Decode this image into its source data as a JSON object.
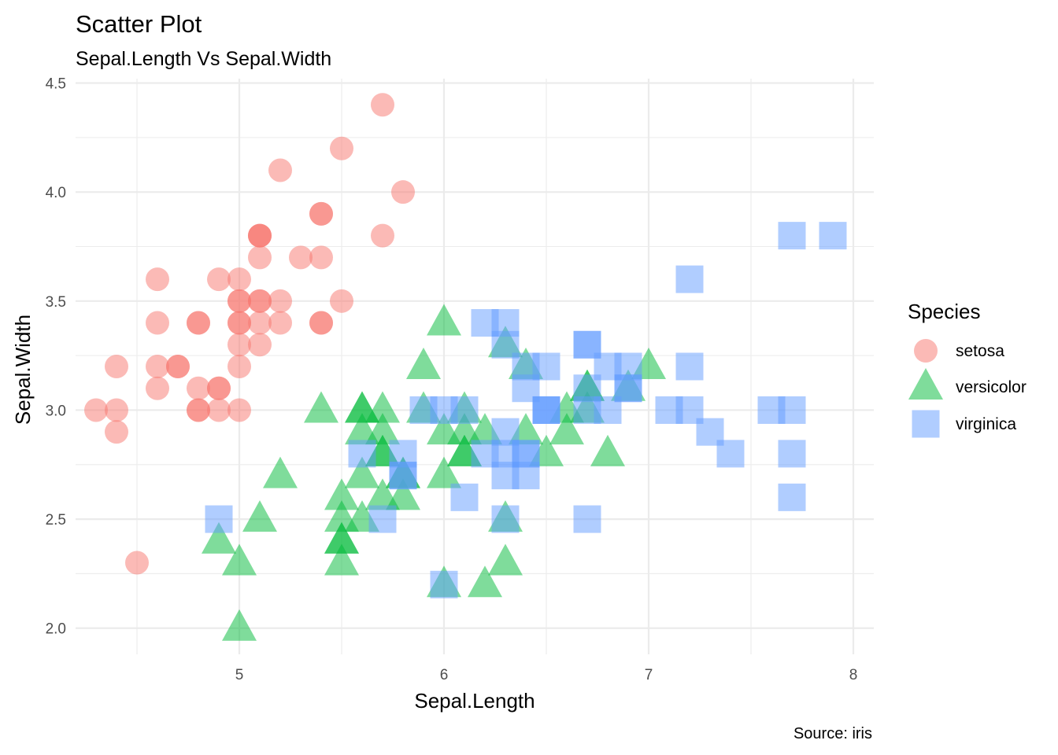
{
  "chart_data": {
    "type": "scatter",
    "title": "Scatter Plot",
    "subtitle": "Sepal.Length Vs Sepal.Width",
    "xlabel": "Sepal.Length",
    "ylabel": "Sepal.Width",
    "caption": "Source: iris",
    "xlim": [
      4.2,
      8.1
    ],
    "ylim": [
      1.88,
      4.52
    ],
    "xticks": [
      5,
      6,
      7,
      8
    ],
    "yticks": [
      2.0,
      2.5,
      3.0,
      3.5,
      4.0,
      4.5
    ],
    "ytick_labels": [
      "2.0",
      "2.5",
      "3.0",
      "3.5",
      "4.0",
      "4.5"
    ],
    "grid": true,
    "legend": {
      "title": "Species",
      "placement": "right"
    },
    "series": [
      {
        "name": "setosa",
        "shape": "circle",
        "color": "#F8766D",
        "points": [
          [
            5.1,
            3.5
          ],
          [
            4.9,
            3.0
          ],
          [
            4.7,
            3.2
          ],
          [
            4.6,
            3.1
          ],
          [
            5.0,
            3.6
          ],
          [
            5.4,
            3.9
          ],
          [
            4.6,
            3.4
          ],
          [
            5.0,
            3.4
          ],
          [
            4.4,
            2.9
          ],
          [
            4.9,
            3.1
          ],
          [
            5.4,
            3.7
          ],
          [
            4.8,
            3.4
          ],
          [
            4.8,
            3.0
          ],
          [
            4.3,
            3.0
          ],
          [
            5.8,
            4.0
          ],
          [
            5.7,
            4.4
          ],
          [
            5.4,
            3.9
          ],
          [
            5.1,
            3.5
          ],
          [
            5.7,
            3.8
          ],
          [
            5.1,
            3.8
          ],
          [
            5.4,
            3.4
          ],
          [
            5.1,
            3.7
          ],
          [
            4.6,
            3.6
          ],
          [
            5.1,
            3.3
          ],
          [
            4.8,
            3.4
          ],
          [
            5.0,
            3.0
          ],
          [
            5.0,
            3.4
          ],
          [
            5.2,
            3.5
          ],
          [
            5.2,
            3.4
          ],
          [
            4.7,
            3.2
          ],
          [
            4.8,
            3.1
          ],
          [
            5.4,
            3.4
          ],
          [
            5.2,
            4.1
          ],
          [
            5.5,
            4.2
          ],
          [
            4.9,
            3.1
          ],
          [
            5.0,
            3.2
          ],
          [
            5.5,
            3.5
          ],
          [
            4.9,
            3.6
          ],
          [
            4.4,
            3.0
          ],
          [
            5.1,
            3.4
          ],
          [
            5.0,
            3.5
          ],
          [
            4.5,
            2.3
          ],
          [
            4.4,
            3.2
          ],
          [
            5.0,
            3.5
          ],
          [
            5.1,
            3.8
          ],
          [
            4.8,
            3.0
          ],
          [
            5.1,
            3.8
          ],
          [
            4.6,
            3.2
          ],
          [
            5.3,
            3.7
          ],
          [
            5.0,
            3.3
          ]
        ]
      },
      {
        "name": "versicolor",
        "shape": "triangle",
        "color": "#00BA38",
        "points": [
          [
            7.0,
            3.2
          ],
          [
            6.4,
            3.2
          ],
          [
            6.9,
            3.1
          ],
          [
            5.5,
            2.3
          ],
          [
            6.5,
            2.8
          ],
          [
            5.7,
            2.8
          ],
          [
            6.3,
            3.3
          ],
          [
            4.9,
            2.4
          ],
          [
            6.6,
            2.9
          ],
          [
            5.2,
            2.7
          ],
          [
            5.0,
            2.0
          ],
          [
            5.9,
            3.0
          ],
          [
            6.0,
            2.2
          ],
          [
            6.1,
            2.9
          ],
          [
            5.6,
            2.9
          ],
          [
            6.7,
            3.1
          ],
          [
            5.6,
            3.0
          ],
          [
            5.8,
            2.7
          ],
          [
            6.2,
            2.2
          ],
          [
            5.6,
            2.5
          ],
          [
            5.9,
            3.2
          ],
          [
            6.1,
            2.8
          ],
          [
            6.3,
            2.5
          ],
          [
            6.1,
            2.8
          ],
          [
            6.4,
            2.9
          ],
          [
            6.6,
            3.0
          ],
          [
            6.8,
            2.8
          ],
          [
            6.7,
            3.0
          ],
          [
            6.0,
            2.9
          ],
          [
            5.7,
            2.6
          ],
          [
            5.5,
            2.4
          ],
          [
            5.5,
            2.4
          ],
          [
            5.8,
            2.7
          ],
          [
            6.0,
            2.7
          ],
          [
            5.4,
            3.0
          ],
          [
            6.0,
            3.4
          ],
          [
            6.7,
            3.1
          ],
          [
            6.3,
            2.3
          ],
          [
            5.6,
            3.0
          ],
          [
            5.5,
            2.5
          ],
          [
            5.5,
            2.6
          ],
          [
            6.1,
            3.0
          ],
          [
            5.8,
            2.6
          ],
          [
            5.0,
            2.3
          ],
          [
            5.6,
            2.7
          ],
          [
            5.7,
            3.0
          ],
          [
            5.7,
            2.9
          ],
          [
            6.2,
            2.9
          ],
          [
            5.1,
            2.5
          ],
          [
            5.7,
            2.8
          ]
        ]
      },
      {
        "name": "virginica",
        "shape": "square",
        "color": "#619CFF",
        "points": [
          [
            6.3,
            3.3
          ],
          [
            5.8,
            2.7
          ],
          [
            7.1,
            3.0
          ],
          [
            6.3,
            2.9
          ],
          [
            6.5,
            3.0
          ],
          [
            7.6,
            3.0
          ],
          [
            4.9,
            2.5
          ],
          [
            7.3,
            2.9
          ],
          [
            6.7,
            2.5
          ],
          [
            7.2,
            3.6
          ],
          [
            6.5,
            3.2
          ],
          [
            6.4,
            2.7
          ],
          [
            6.8,
            3.0
          ],
          [
            5.7,
            2.5
          ],
          [
            5.8,
            2.8
          ],
          [
            6.4,
            3.2
          ],
          [
            6.5,
            3.0
          ],
          [
            7.7,
            3.8
          ],
          [
            7.7,
            2.6
          ],
          [
            6.0,
            2.2
          ],
          [
            6.9,
            3.2
          ],
          [
            5.6,
            2.8
          ],
          [
            7.7,
            2.8
          ],
          [
            6.3,
            2.7
          ],
          [
            6.7,
            3.3
          ],
          [
            7.2,
            3.2
          ],
          [
            6.2,
            2.8
          ],
          [
            6.1,
            3.0
          ],
          [
            6.4,
            2.8
          ],
          [
            7.2,
            3.0
          ],
          [
            7.4,
            2.8
          ],
          [
            7.9,
            3.8
          ],
          [
            6.4,
            2.8
          ],
          [
            6.3,
            2.8
          ],
          [
            6.1,
            2.6
          ],
          [
            7.7,
            3.0
          ],
          [
            6.3,
            3.4
          ],
          [
            6.4,
            3.1
          ],
          [
            6.0,
            3.0
          ],
          [
            6.9,
            3.1
          ],
          [
            6.7,
            3.1
          ],
          [
            6.9,
            3.1
          ],
          [
            5.8,
            2.7
          ],
          [
            6.8,
            3.2
          ],
          [
            6.7,
            3.3
          ],
          [
            6.7,
            3.0
          ],
          [
            6.3,
            2.5
          ],
          [
            6.5,
            3.0
          ],
          [
            6.2,
            3.4
          ],
          [
            5.9,
            3.0
          ]
        ]
      }
    ]
  }
}
